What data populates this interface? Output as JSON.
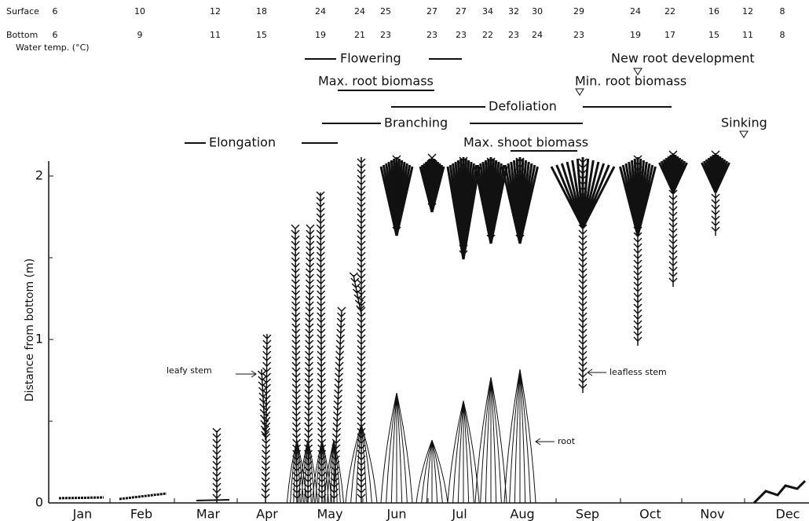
{
  "water_temp": {
    "rows": [
      {
        "label": "Surface",
        "values": [
          "6",
          "10",
          "12",
          "18",
          "24",
          "24",
          "25",
          "27",
          "27",
          "34",
          "32",
          "30",
          "29",
          "24",
          "22",
          "16",
          "12",
          "8"
        ]
      },
      {
        "label": "Bottom",
        "values": [
          "6",
          "9",
          "11",
          "15",
          "19",
          "21",
          "23",
          "23",
          "23",
          "22",
          "23",
          "24",
          "23",
          "19",
          "17",
          "15",
          "11",
          "8"
        ]
      }
    ],
    "caption": "Water temp. (°C)"
  },
  "phases": {
    "flowering": "Flowering",
    "max_root": "Max. root biomass",
    "new_root": "New root development",
    "min_root": "Min. root biomass",
    "defoliation": "Defoliation",
    "branching": "Branching",
    "sinking": "Sinking",
    "elongation": "Elongation",
    "max_shoot": "Max. shoot biomass"
  },
  "y_axis": {
    "label": "Distance from bottom (m)",
    "ticks": [
      0,
      1,
      2
    ]
  },
  "months": [
    "Jan",
    "Feb",
    "Mar",
    "Apr",
    "May",
    "Jun",
    "Jul",
    "Aug",
    "Sep",
    "Oct",
    "Nov",
    "Dec"
  ],
  "annotations": {
    "leafy": "leafy stem",
    "leafless": "leafless stem",
    "root": "root"
  }
}
